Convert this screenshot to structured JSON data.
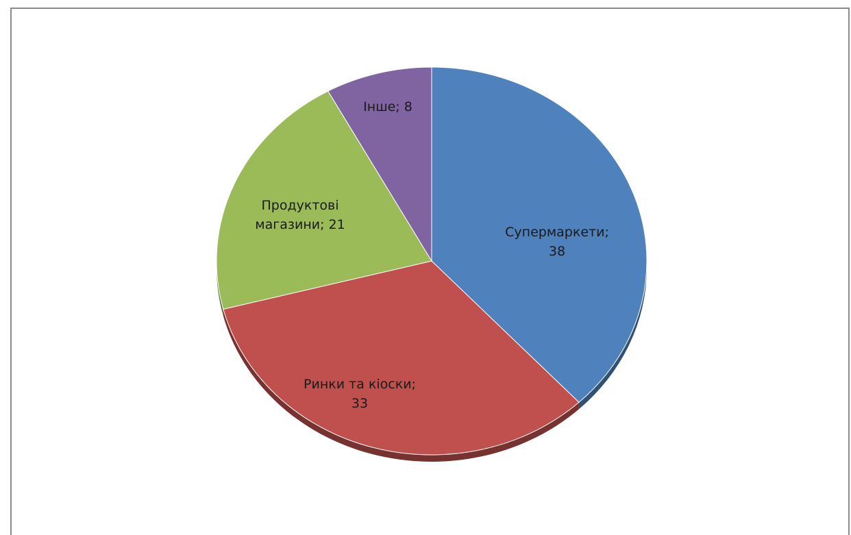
{
  "chart_data": {
    "type": "pie",
    "series": [
      {
        "label": "Супермаркети",
        "value": 38,
        "color": "#4f81bd",
        "label_lines": [
          "Супермаркети;",
          "38"
        ]
      },
      {
        "label": "Ринки та кіоски",
        "value": 33,
        "color": "#c0504d",
        "label_lines": [
          "Ринки та кіоски;",
          "33"
        ]
      },
      {
        "label": "Продуктові магазини",
        "value": 21,
        "color": "#9bbb59",
        "label_lines": [
          "Продуктові",
          "магазини; 21"
        ]
      },
      {
        "label": "Інше",
        "value": 8,
        "color": "#8064a2",
        "label_lines": [
          "Інше; 8"
        ]
      }
    ],
    "legend": "none",
    "data_labels": "inside"
  }
}
